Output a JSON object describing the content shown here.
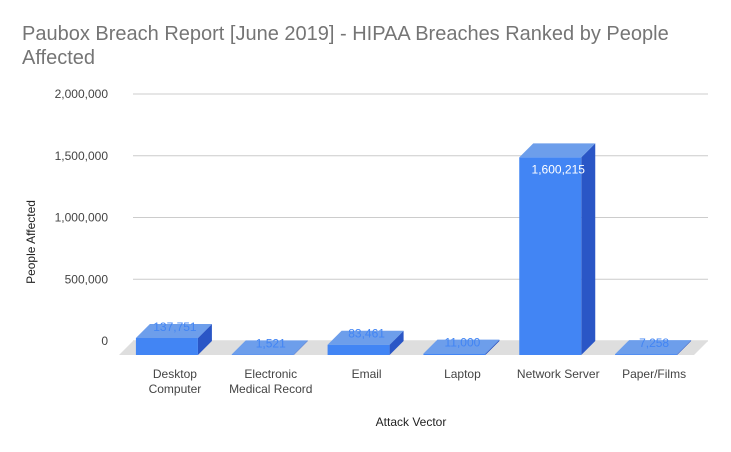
{
  "chart_data": {
    "type": "bar",
    "title": "Paubox Breach Report [June 2019] - HIPAA Breaches Ranked by People Affected",
    "xlabel": "Attack Vector",
    "ylabel": "People Affected",
    "categories": [
      [
        "Desktop",
        "Computer"
      ],
      [
        "Electronic",
        "Medical Record"
      ],
      [
        "Email"
      ],
      [
        "Laptop"
      ],
      [
        "Network Server"
      ],
      [
        "Paper/Films"
      ]
    ],
    "values": [
      137751,
      1521,
      83461,
      11000,
      1600215,
      7258
    ],
    "data_labels": [
      "137,751",
      "1,521",
      "83,461",
      "11,000",
      "1,600,215",
      "7,258"
    ],
    "ylim": [
      0,
      2000000
    ],
    "yticks": [
      0,
      500000,
      1000000,
      1500000,
      2000000
    ],
    "ytick_labels": [
      "0",
      "500,000",
      "1,000,000",
      "1,500,000",
      "2,000,000"
    ],
    "grid": true,
    "legend": "none",
    "colors": {
      "front": "#4285f4",
      "side": "#2a56c6",
      "top": "#6d9eeb",
      "floor": "#dedede",
      "grid": "#cccccc",
      "label_outside": "#4285f4",
      "label_inside": "#ffffff"
    }
  }
}
